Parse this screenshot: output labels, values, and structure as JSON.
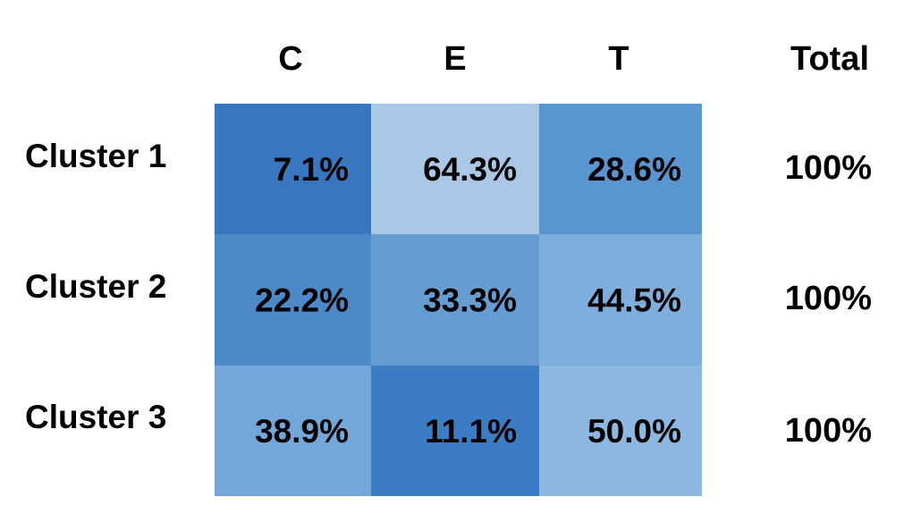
{
  "chart_data": {
    "type": "heatmap",
    "columns": [
      "C",
      "E",
      "T"
    ],
    "rows": [
      "Cluster 1",
      "Cluster 2",
      "Cluster 3"
    ],
    "values": [
      [
        7.1,
        64.3,
        28.6
      ],
      [
        22.2,
        33.3,
        44.5
      ],
      [
        38.9,
        11.1,
        50.0
      ]
    ],
    "cell_labels": [
      [
        "7.1%",
        "64.3%",
        "28.6%"
      ],
      [
        "22.2%",
        "33.3%",
        "44.5%"
      ],
      [
        "38.9%",
        "11.1%",
        "50.0%"
      ]
    ],
    "cell_colors": [
      [
        "#3877bf",
        "#aac7e6",
        "#5995d0"
      ],
      [
        "#4b89c9",
        "#659dd3",
        "#7eaedb"
      ],
      [
        "#74a7d9",
        "#3b7cc4",
        "#8bb7e0"
      ]
    ],
    "total_header": "Total",
    "totals": [
      "100%",
      "100%",
      "100%"
    ]
  }
}
